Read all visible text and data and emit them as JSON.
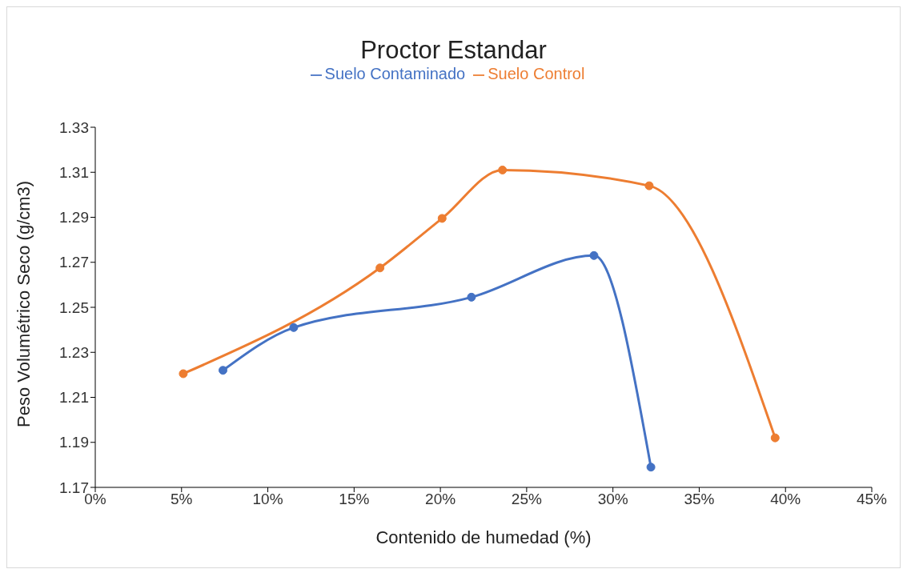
{
  "chart_data": {
    "type": "line",
    "title": "Proctor Estandar",
    "xlabel": "Contenido de humedad (%)",
    "ylabel": "Peso Volumétrico Seco (g/cm3)",
    "series": [
      {
        "name": "Suelo Contaminado",
        "color": "#4472c4",
        "x": [
          7.4,
          11.5,
          21.8,
          28.9,
          32.2
        ],
        "values": [
          1.222,
          1.241,
          1.2545,
          1.273,
          1.179
        ]
      },
      {
        "name": "Suelo Control",
        "color": "#ed7d31",
        "x": [
          5.1,
          16.5,
          20.1,
          23.6,
          32.1,
          39.4
        ],
        "values": [
          1.2205,
          1.2675,
          1.2895,
          1.311,
          1.304,
          1.192
        ]
      }
    ],
    "xlim": [
      0,
      45
    ],
    "xticks": [
      {
        "value": 0,
        "label": "0%"
      },
      {
        "value": 5,
        "label": "5%"
      },
      {
        "value": 10,
        "label": "10%"
      },
      {
        "value": 15,
        "label": "15%"
      },
      {
        "value": 20,
        "label": "20%"
      },
      {
        "value": 25,
        "label": "25%"
      },
      {
        "value": 30,
        "label": "30%"
      },
      {
        "value": 35,
        "label": "35%"
      },
      {
        "value": 40,
        "label": "40%"
      },
      {
        "value": 45,
        "label": "45%"
      }
    ],
    "ylim": [
      1.17,
      1.33
    ],
    "yticks": [
      {
        "value": 1.17,
        "label": "1.17"
      },
      {
        "value": 1.19,
        "label": "1.19"
      },
      {
        "value": 1.21,
        "label": "1.21"
      },
      {
        "value": 1.23,
        "label": "1.23"
      },
      {
        "value": 1.25,
        "label": "1.25"
      },
      {
        "value": 1.27,
        "label": "1.27"
      },
      {
        "value": 1.29,
        "label": "1.29"
      },
      {
        "value": 1.31,
        "label": "1.31"
      },
      {
        "value": 1.33,
        "label": "1.33"
      }
    ],
    "grid": false,
    "legend": "top",
    "marker": "circle",
    "line_style": "solid"
  }
}
